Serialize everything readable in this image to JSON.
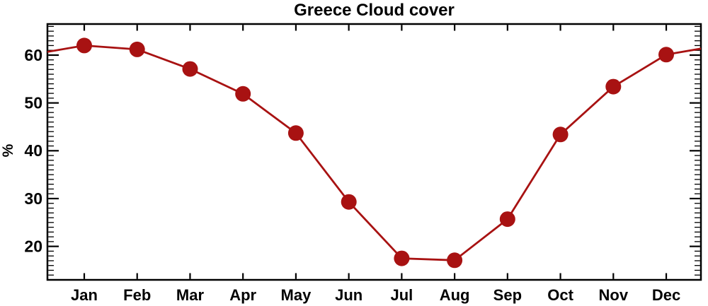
{
  "chart_data": {
    "type": "line",
    "title": "Greece Cloud cover",
    "xlabel": "",
    "ylabel": "%",
    "categories": [
      "Jan",
      "Feb",
      "Mar",
      "Apr",
      "May",
      "Jun",
      "Jul",
      "Aug",
      "Sep",
      "Oct",
      "Nov",
      "Dec"
    ],
    "series": [
      {
        "name": "Cloud cover",
        "values": [
          62.0,
          61.2,
          57.1,
          51.9,
          43.7,
          29.3,
          17.5,
          17.1,
          25.7,
          43.4,
          53.4,
          60.1
        ]
      }
    ],
    "ylim": [
      13.0,
      66.5
    ],
    "yticks": [
      20,
      30,
      40,
      50,
      60
    ],
    "minor_ytick_step": 1,
    "grid": false,
    "legend": "none",
    "periodic_wrap": true,
    "marker": "circle",
    "colors": {
      "line": "#A81212",
      "marker": "#A81212",
      "axis": "#000000",
      "text": "#000000",
      "background": "#FFFFFF"
    }
  }
}
